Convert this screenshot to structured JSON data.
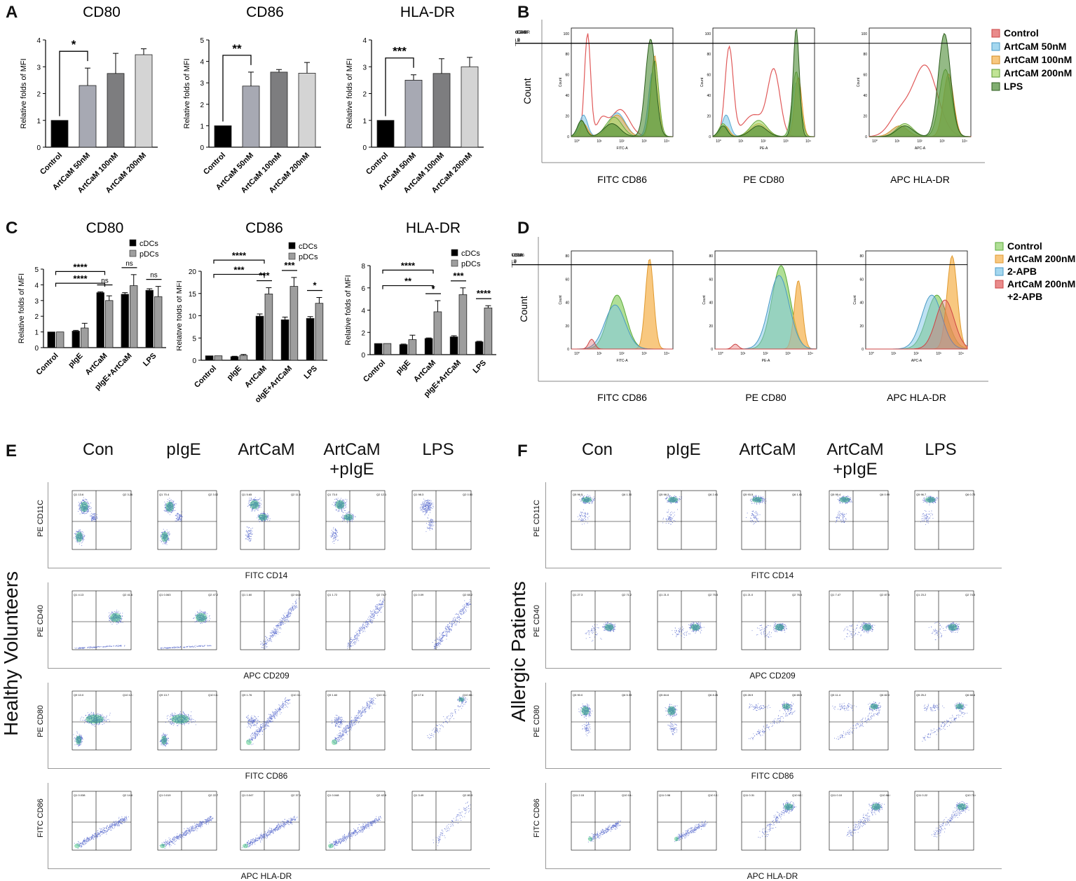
{
  "panels": {
    "A": "A",
    "B": "B",
    "C": "C",
    "D": "D",
    "E": "E",
    "F": "F"
  },
  "colors": {
    "control": "#000000",
    "g1": "#a7a9b3",
    "g2": "#7d7d7f",
    "g3": "#d4d4d4",
    "pdc": "#9e9e9e",
    "hist_control": "#e05a5a",
    "hist_50": "#7dc6e8",
    "hist_100": "#f5b04a",
    "hist_200": "#a6d96a",
    "hist_lps": "#4c8c35",
    "d_control": "#8fd16a",
    "d_200": "#f5b04a",
    "d_apb": "#7dc6e8",
    "d_combo": "#e05a5a",
    "dot": "#3a4fc4"
  },
  "chart_data": [
    {
      "id": "A1",
      "type": "bar",
      "title": "CD80",
      "ylabel": "Relative folds of MFI",
      "ylim": [
        0,
        4
      ],
      "yticks": [
        0,
        1,
        2,
        3,
        4
      ],
      "categories": [
        "Control",
        "ArtCaM 50nM",
        "ArtCaM 100nM",
        "ArtCaM 200nM"
      ],
      "values": [
        1.0,
        2.3,
        2.75,
        3.45
      ],
      "errors": [
        0,
        0.65,
        0.75,
        0.22
      ],
      "annotations": [
        {
          "from": 0,
          "to": 1,
          "text": "*"
        }
      ]
    },
    {
      "id": "A2",
      "type": "bar",
      "title": "CD86",
      "ylabel": "Relative folds of MFI",
      "ylim": [
        0,
        5
      ],
      "yticks": [
        0,
        1,
        2,
        3,
        4,
        5
      ],
      "categories": [
        "Control",
        "ArtCaM 50nM",
        "ArtCaM 100nM",
        "ArtCaM 200nM"
      ],
      "values": [
        1.0,
        2.85,
        3.5,
        3.45
      ],
      "errors": [
        0,
        0.65,
        0.12,
        0.5
      ],
      "annotations": [
        {
          "from": 0,
          "to": 1,
          "text": "**"
        }
      ]
    },
    {
      "id": "A3",
      "type": "bar",
      "title": "HLA-DR",
      "ylabel": "Relative folds of MFI",
      "ylim": [
        0,
        4
      ],
      "yticks": [
        0,
        1,
        2,
        3,
        4
      ],
      "categories": [
        "Control",
        "ArtCaM 50nM",
        "ArtCaM 100nM",
        "ArtCaM 200nM"
      ],
      "values": [
        1.0,
        2.5,
        2.75,
        3.0
      ],
      "errors": [
        0,
        0.2,
        0.55,
        0.35
      ],
      "annotations": [
        {
          "from": 0,
          "to": 1,
          "text": "***"
        }
      ]
    },
    {
      "id": "C1",
      "type": "bar",
      "title": "CD80",
      "ylabel": "Relative folds of MFI",
      "ylim": [
        0,
        5
      ],
      "yticks": [
        0,
        1,
        2,
        3,
        4,
        5
      ],
      "categories": [
        "Control",
        "pIgE",
        "ArtCaM",
        "pIgE+ArtCaM",
        "LPS"
      ],
      "series": [
        {
          "name": "cDCs",
          "values": [
            1.0,
            1.05,
            3.5,
            3.4,
            3.65
          ],
          "errors": [
            0,
            0.05,
            0.05,
            0.1,
            0.1
          ]
        },
        {
          "name": "pDCs",
          "values": [
            1.0,
            1.25,
            3.0,
            3.95,
            3.25
          ],
          "errors": [
            0,
            0.3,
            0.3,
            0.7,
            0.65
          ]
        }
      ],
      "legend": [
        "cDCs",
        "pDCs"
      ],
      "annotations": [
        {
          "type": "bracket",
          "from": 0,
          "to": 2,
          "level": 4.85,
          "text": "****"
        },
        {
          "type": "bracket",
          "from": 0,
          "to": 2,
          "level": 4.1,
          "text": "****"
        },
        {
          "type": "pair",
          "cat": 2,
          "text": "ns"
        },
        {
          "type": "pair",
          "cat": 3,
          "text": "ns"
        },
        {
          "type": "pair",
          "cat": 4,
          "text": "ns"
        }
      ]
    },
    {
      "id": "C2",
      "type": "bar",
      "title": "CD86",
      "ylabel": "Relative folds of MFI",
      "ylim": [
        0,
        20
      ],
      "yticks": [
        0,
        5,
        10,
        15,
        20
      ],
      "categories": [
        "Control",
        "pIgE",
        "ArtCaM",
        "olgE+ArtCaM",
        "LPS"
      ],
      "series": [
        {
          "name": "cDCs",
          "values": [
            1.0,
            0.8,
            9.9,
            9.1,
            9.4
          ],
          "errors": [
            0,
            0.1,
            0.5,
            0.6,
            0.4
          ]
        },
        {
          "name": "pDCs",
          "values": [
            1.0,
            1.1,
            14.9,
            16.6,
            12.8
          ],
          "errors": [
            0,
            0.2,
            1.4,
            2.0,
            1.3
          ]
        }
      ],
      "legend": [
        "cDCs",
        "pDCs"
      ],
      "annotations": [
        {
          "type": "bracket",
          "from": 0,
          "to": 2,
          "level": 22.5,
          "text": "****"
        },
        {
          "type": "bracket",
          "from": 0,
          "to": 2,
          "level": 19.3,
          "text": "***"
        },
        {
          "type": "pair",
          "cat": 2,
          "text": "***"
        },
        {
          "type": "pair",
          "cat": 3,
          "text": "***"
        },
        {
          "type": "pair",
          "cat": 4,
          "text": "*"
        }
      ]
    },
    {
      "id": "C3",
      "type": "bar",
      "title": "HLA-DR",
      "ylabel": "Relative folds of MFI",
      "ylim": [
        0,
        8
      ],
      "yticks": [
        0,
        2,
        4,
        6,
        8
      ],
      "categories": [
        "Control",
        "pIgE",
        "ArtCaM",
        "pIgE+ArtCaM",
        "LPS"
      ],
      "series": [
        {
          "name": "cDCs",
          "values": [
            1.0,
            0.9,
            1.45,
            1.6,
            1.15
          ],
          "errors": [
            0,
            0.05,
            0.05,
            0.1,
            0.05
          ]
        },
        {
          "name": "pDCs",
          "values": [
            1.0,
            1.35,
            3.85,
            5.4,
            4.2
          ],
          "errors": [
            0,
            0.4,
            1.0,
            0.6,
            0.2
          ]
        }
      ],
      "legend": [
        "cDCs",
        "pDCs"
      ],
      "annotations": [
        {
          "type": "bracket",
          "from": 0,
          "to": 2,
          "level": 7.6,
          "text": "****"
        },
        {
          "type": "bracket",
          "from": 0,
          "to": 2,
          "level": 6.2,
          "text": "**"
        },
        {
          "type": "pair",
          "cat": 2,
          "text": "*"
        },
        {
          "type": "pair",
          "cat": 3,
          "text": "***"
        },
        {
          "type": "pair",
          "cat": 4,
          "text": "****"
        }
      ]
    }
  ],
  "histB": {
    "ylabel": "Count",
    "legend": [
      "Control",
      "ArtCaM 50nM",
      "ArtCaM 100nM",
      "ArtCaM 200nM",
      "LPS"
    ],
    "plots": [
      {
        "xlabel": "FITC CD86",
        "axis": "FITC-A",
        "gate": "FITC-A CD86",
        "pct": "46.2",
        "ymax": "100",
        "yt": [
          "0",
          "20",
          "40",
          "60",
          "80",
          "100"
        ]
      },
      {
        "xlabel": "PE CD80",
        "axis": "PE-A",
        "gate": "PE-A CD80",
        "pct": "44.9",
        "ymax": "100",
        "yt": [
          "0",
          "20",
          "40",
          "60",
          "80",
          "100"
        ]
      },
      {
        "xlabel": "APC HLA-DR",
        "axis": "APC-A",
        "gate": "APC-A HLA-DR",
        "pct": "49.8",
        "ymax": "100",
        "yt": [
          "0",
          "20",
          "40",
          "60",
          "80",
          "100"
        ]
      }
    ]
  },
  "histD": {
    "ylabel": "Count",
    "legend": [
      "Control",
      "ArtCaM 200nM",
      "2-APB",
      "ArtCaM 200nM",
      "+2-APB"
    ],
    "plots": [
      {
        "xlabel": "FITC CD86",
        "axis": "FITC-A",
        "gate": "FITC-A CD86",
        "pct": "72.9",
        "yt": [
          "0",
          "20",
          "40",
          "60",
          "80"
        ]
      },
      {
        "xlabel": "PE CD80",
        "axis": "PE-A",
        "gate": "PE-A CD80",
        "pct": "81.0",
        "yt": [
          "0",
          "20",
          "40",
          "60",
          "80"
        ]
      },
      {
        "xlabel": "APC HLA-DR",
        "axis": "APC-A",
        "gate": "APC-A HLA",
        "pct": "98.7",
        "yt": [
          "0",
          "20",
          "40",
          "60",
          "80"
        ]
      }
    ]
  },
  "flowE": {
    "side": "Healthy Volunteers",
    "columns": [
      "Con",
      "pIgE",
      "ArtCaM",
      "ArtCaM\n+pIgE",
      "LPS"
    ],
    "rows": [
      {
        "ylabel": "PE CD11C",
        "xlabel": "FITC CD14",
        "q": [
          [
            "Q1 13.6",
            "Q2 3.26"
          ],
          [
            "Q1 70.4",
            "Q2 3.02"
          ],
          [
            "Q1 5.65",
            "Q2 11.6"
          ],
          [
            "Q1 73.0",
            "Q2 12.1"
          ],
          [
            "Q1 98.3",
            "Q2 0.50"
          ]
        ]
      },
      {
        "ylabel": "PE CD40",
        "xlabel": "APC CD209",
        "q": [
          [
            "Q1 4.13",
            "Q2 41.6"
          ],
          [
            "Q1 0.063",
            "Q2 47.2"
          ],
          [
            "Q1 1.60",
            "Q2 64.6"
          ],
          [
            "Q1 1.72",
            "Q2 74.7"
          ],
          [
            "Q1 0.09",
            "Q2 65.2"
          ]
        ]
      },
      {
        "ylabel": "PE CD80",
        "xlabel": "FITC CD86",
        "q": [
          [
            "Q9 10.0",
            "Q10 12.3"
          ],
          [
            "Q9 13.7",
            "Q10 13.1"
          ],
          [
            "Q9 1.76",
            "Q10 31.1"
          ],
          [
            "Q9 1.60",
            "Q10 31.1"
          ],
          [
            "Q9 17.6",
            "Q10 80.3"
          ]
        ]
      },
      {
        "ylabel": "FITC CD86",
        "xlabel": "APC HLA-DR",
        "q": [
          [
            "Q1 0.038",
            "Q2 14.6"
          ],
          [
            "Q1 0.019",
            "Q2 22.7"
          ],
          [
            "Q1 0.047",
            "Q2 37.1"
          ],
          [
            "Q1 0.048",
            "Q2 42.5"
          ],
          [
            "Q1 3.49",
            "Q2 80.3"
          ]
        ]
      }
    ]
  },
  "flowF": {
    "side": "Allergic Patients",
    "columns": [
      "Con",
      "pIgE",
      "ArtCaM",
      "ArtCaM\n+pIgE",
      "LPS"
    ],
    "rows": [
      {
        "ylabel": "PE CD11C",
        "xlabel": "FITC CD14",
        "q": [
          [
            "Q5 96.5",
            "Q6 1.30"
          ],
          [
            "Q5 98.2",
            "Q6 2.41"
          ],
          [
            "Q5 93.5",
            "Q6 1.41"
          ],
          [
            "Q5 95.4",
            "Q6 0.99"
          ],
          [
            "Q5 96.7",
            "Q6 0.73"
          ]
        ]
      },
      {
        "ylabel": "PE CD40",
        "xlabel": "APC CD209",
        "q": [
          [
            "Q1 27.3",
            "Q2 71.2"
          ],
          [
            "Q1 21.0",
            "Q2 75.5"
          ],
          [
            "Q1 21.0",
            "Q2 76.4"
          ],
          [
            "Q1 7.47",
            "Q2 87.5"
          ],
          [
            "Q1 23.2",
            "Q2 74.5"
          ]
        ]
      },
      {
        "ylabel": "PE CD80",
        "xlabel": "FITC CD86",
        "q": [
          [
            "Q5 90.0",
            "Q6 5.33"
          ],
          [
            "Q5 84.6",
            "Q6 8.26"
          ],
          [
            "Q5 28.9",
            "Q6 65.5"
          ],
          [
            "Q5 11.4",
            "Q6 82.0"
          ],
          [
            "Q5 25.2",
            "Q6 68.6"
          ]
        ]
      },
      {
        "ylabel": "FITC CD86",
        "xlabel": "APC HLA-DR",
        "q": [
          [
            "Q11 2.15",
            "Q10 10.4"
          ],
          [
            "Q11 0.98",
            "Q10 12.3"
          ],
          [
            "Q11 0.31",
            "Q10 62.3"
          ],
          [
            "Q11 0.10",
            "Q10 88.0"
          ],
          [
            "Q11 0.22",
            "Q10 73.6"
          ]
        ]
      }
    ]
  }
}
